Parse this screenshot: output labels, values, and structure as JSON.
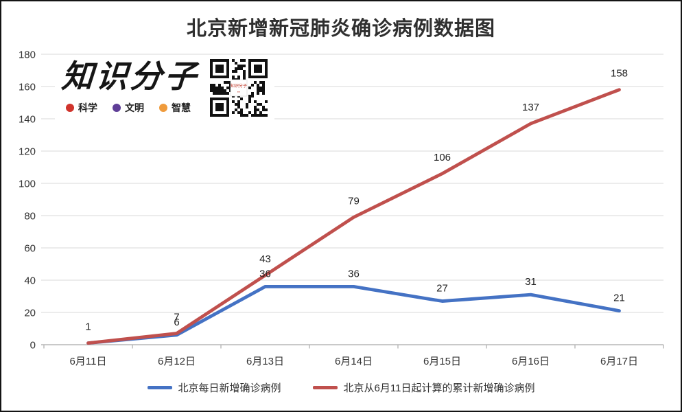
{
  "logo": {
    "name": "知识分子",
    "taglines": [
      {
        "label": "科学",
        "color": "#d0342c"
      },
      {
        "label": "文明",
        "color": "#5f3e97"
      },
      {
        "label": "智慧",
        "color": "#ef9b3c"
      }
    ]
  },
  "chart_data": {
    "type": "line",
    "title": "北京新增新冠肺炎确诊病例数据图",
    "categories": [
      "6月11日",
      "6月12日",
      "6月13日",
      "6月14日",
      "6月15日",
      "6月16日",
      "6月17日"
    ],
    "series": [
      {
        "name": "北京每日新增确诊病例",
        "color": "#4472c4",
        "values": [
          1,
          6,
          36,
          36,
          27,
          31,
          21
        ]
      },
      {
        "name": "北京从6月11日起计算的累计新增确诊病例",
        "color": "#c0504d",
        "values": [
          1,
          7,
          43,
          79,
          106,
          137,
          158
        ]
      }
    ],
    "ylim": [
      0,
      180
    ],
    "ytick_step": 20,
    "grid": true,
    "data_labels": true,
    "legend_position": "bottom",
    "colors": {
      "gridline": "#d9d9d9",
      "axis": "#b7b7b7",
      "text": "#333333"
    }
  }
}
